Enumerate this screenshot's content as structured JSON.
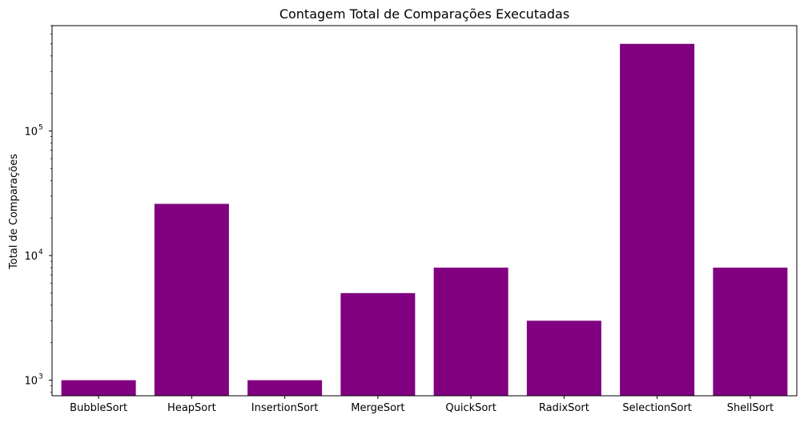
{
  "chart_data": {
    "type": "bar",
    "title": "Contagem Total de Comparações Executadas",
    "xlabel": "",
    "ylabel": "Total de Comparações",
    "yscale": "log",
    "ylim": [
      750,
      700000
    ],
    "yticks": [
      {
        "value": 1000,
        "base": "10",
        "exp": "3"
      },
      {
        "value": 10000,
        "base": "10",
        "exp": "4"
      },
      {
        "value": 100000,
        "base": "10",
        "exp": "5"
      }
    ],
    "bar_color": "#800080",
    "categories": [
      "BubbleSort",
      "HeapSort",
      "InsertionSort",
      "MergeSort",
      "QuickSort",
      "RadixSort",
      "SelectionSort",
      "ShellSort"
    ],
    "values": [
      1000,
      26000,
      1000,
      5000,
      8000,
      3000,
      500000,
      8000
    ],
    "grid": false,
    "legend": "none"
  }
}
